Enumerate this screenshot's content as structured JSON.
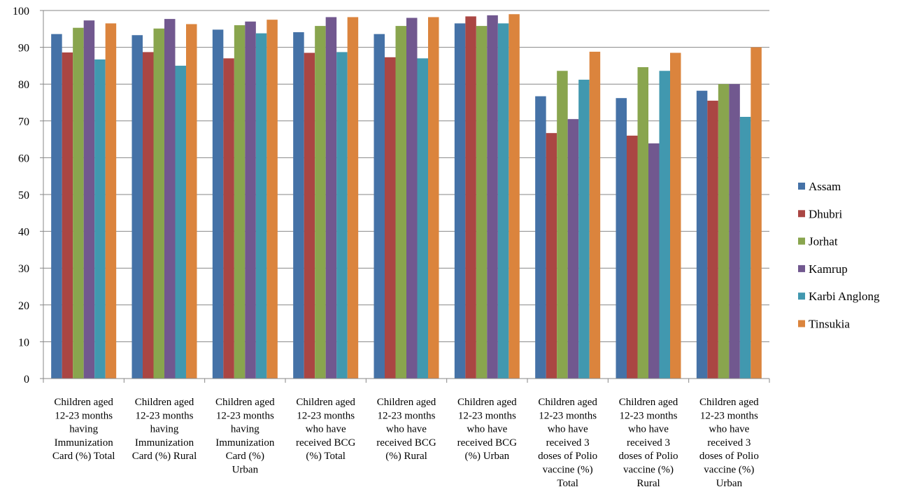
{
  "chart_data": {
    "type": "bar",
    "title": "",
    "xlabel": "",
    "ylabel": "",
    "ylim": [
      0,
      100
    ],
    "yticks": [
      0,
      10,
      20,
      30,
      40,
      50,
      60,
      70,
      80,
      90,
      100
    ],
    "grid": true,
    "legend_position": "right",
    "categories": [
      [
        "Children aged",
        "12-23 months",
        "having",
        "Immunization",
        "Card (%) Total"
      ],
      [
        "Children aged",
        "12-23 months",
        "having",
        "Immunization",
        "Card (%) Rural"
      ],
      [
        "Children aged",
        "12-23 months",
        "having",
        "Immunization",
        "Card (%)",
        "Urban"
      ],
      [
        "Children aged",
        "12-23 months",
        "who have",
        "received BCG",
        "(%) Total"
      ],
      [
        "Children aged",
        "12-23 months",
        "who have",
        "received BCG",
        "(%) Rural"
      ],
      [
        "Children aged",
        "12-23 months",
        "who have",
        "received BCG",
        "(%) Urban"
      ],
      [
        "Children aged",
        "12-23 months",
        "who have",
        "received 3",
        "doses of Polio",
        "vaccine (%)",
        "Total"
      ],
      [
        "Children aged",
        "12-23 months",
        "who have",
        "received 3",
        "doses of Polio",
        "vaccine (%)",
        "Rural"
      ],
      [
        "Children aged",
        "12-23 months",
        "who have",
        "received 3",
        "doses of Polio",
        "vaccine (%)",
        "Urban"
      ]
    ],
    "series": [
      {
        "name": "Assam",
        "color": "#4572a7",
        "values": [
          93.6,
          93.3,
          94.8,
          94.1,
          93.6,
          96.5,
          76.7,
          76.2,
          78.2
        ]
      },
      {
        "name": "Dhubri",
        "color": "#aa4643",
        "values": [
          88.6,
          88.7,
          87.0,
          88.5,
          87.3,
          98.4,
          66.7,
          66.0,
          75.5
        ]
      },
      {
        "name": "Jorhat",
        "color": "#89a54e",
        "values": [
          95.3,
          95.1,
          96.0,
          95.8,
          95.8,
          95.8,
          83.6,
          84.6,
          80.0
        ]
      },
      {
        "name": "Kamrup",
        "color": "#71588f",
        "values": [
          97.3,
          97.7,
          97.0,
          98.2,
          98.0,
          98.7,
          70.5,
          63.9,
          80.0
        ]
      },
      {
        "name": "Karbi Anglong",
        "color": "#4198af",
        "values": [
          86.7,
          85.0,
          93.8,
          88.7,
          87.0,
          96.5,
          81.2,
          83.6,
          71.1
        ]
      },
      {
        "name": "Tinsukia",
        "color": "#db843d",
        "values": [
          96.5,
          96.3,
          97.5,
          98.2,
          98.2,
          99.0,
          88.8,
          88.5,
          90.0
        ]
      }
    ]
  }
}
